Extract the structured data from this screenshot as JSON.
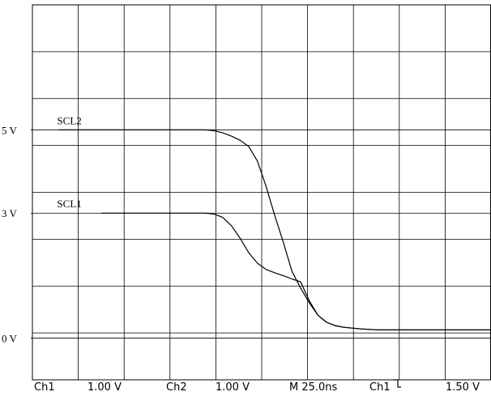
{
  "chart_data": {
    "type": "line",
    "x": [
      0,
      5,
      10,
      15,
      20,
      25,
      30,
      35,
      40,
      45,
      50,
      55,
      60,
      65,
      70,
      75,
      80,
      85,
      90,
      95,
      100,
      105,
      110,
      115,
      120,
      125,
      130,
      135,
      140,
      145,
      150,
      155,
      160,
      165,
      170,
      175,
      180,
      185,
      190,
      195,
      200,
      210,
      220,
      230,
      240,
      250
    ],
    "series": [
      {
        "name": "SCL2",
        "values": [
          5.0,
          5.0,
          5.0,
          5.0,
          5.0,
          5.0,
          5.0,
          5.0,
          5.0,
          5.0,
          5.0,
          5.0,
          5.0,
          5.0,
          5.0,
          5.0,
          5.0,
          5.0,
          4.98,
          4.93,
          4.85,
          4.75,
          4.6,
          4.25,
          3.65,
          2.95,
          2.3,
          1.6,
          1.2,
          0.85,
          0.55,
          0.38,
          0.3,
          0.26,
          0.24,
          0.22,
          0.21,
          0.2,
          0.2,
          0.2,
          0.2,
          0.2,
          0.2,
          0.2,
          0.2,
          0.2
        ]
      },
      {
        "name": "SCL1",
        "values": [
          null,
          null,
          null,
          null,
          null,
          3.0,
          3.0,
          3.0,
          3.0,
          3.0,
          3.0,
          3.0,
          3.0,
          3.0,
          3.0,
          3.0,
          3.0,
          3.0,
          2.98,
          2.9,
          2.7,
          2.4,
          2.05,
          1.8,
          1.65,
          1.57,
          1.5,
          1.42,
          1.35,
          0.9,
          0.55,
          0.38,
          0.3,
          0.26,
          0.24,
          0.22,
          0.21,
          0.2,
          0.2,
          0.2,
          0.2,
          0.2,
          0.2,
          0.2,
          0.2,
          0.2
        ]
      }
    ],
    "xlim": [
      -15,
      250
    ],
    "ylim": [
      -1,
      8
    ],
    "grid": true,
    "level_labels": [
      {
        "label": "5 V",
        "y": 5
      },
      {
        "label": "3 V",
        "y": 3
      },
      {
        "label": "0 V",
        "y": 0
      }
    ],
    "trace_labels": [
      {
        "text": "SCL2",
        "series": 0,
        "at_x": 25
      },
      {
        "text": "SCL1",
        "series": 1,
        "at_x": 25
      }
    ]
  },
  "status_bar": {
    "ch1_label": "Ch1",
    "ch1_scale": "1.00 V",
    "ch2_label": "Ch2",
    "ch2_scale": "1.00 V",
    "timebase": "M 25.0ns",
    "trigger_source": "Ch1",
    "trigger_slope_icon": "falling-edge-icon",
    "trigger_level": "1.50 V"
  },
  "colors": {
    "trace": "#000000",
    "grid": "#000000",
    "background": "#ffffff"
  }
}
